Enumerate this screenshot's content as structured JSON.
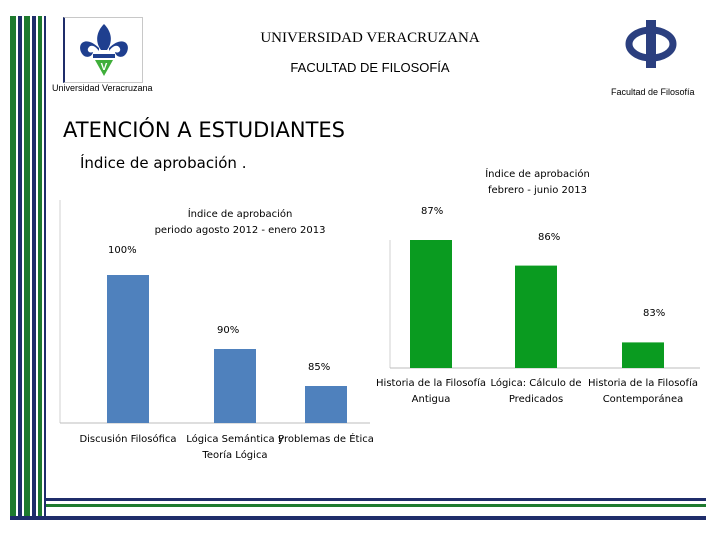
{
  "header": {
    "university": "UNIVERSIDAD VERACRUZANA",
    "faculty": "FACULTAD DE FILOSOFÍA",
    "left_logo_caption": "Universidad Veracruzana",
    "right_logo_caption": "Facultad de Filosofía"
  },
  "main": {
    "section_title": "ATENCIÓN A ESTUDIANTES",
    "subtitle": "Índice de aprobación ."
  },
  "colors": {
    "stripe_green": "#1e7a2e",
    "stripe_navy": "#1f2d6a",
    "chart1_bar": "#4f81bd",
    "chart2_bar": "#0a9b20"
  },
  "icons": {
    "left_logo": "uv-fleur-de-lis-logo",
    "right_logo": "phi-symbol-logo"
  },
  "chart_data": [
    {
      "type": "bar",
      "title_lines": [
        "Índice de aprobación",
        "periodo agosto 2012 - enero 2013"
      ],
      "categories": [
        "Discusión Filosófica",
        "Lógica Semántica y Teoría Lógica",
        "Problemas de Ética"
      ],
      "values": [
        100,
        90,
        85
      ],
      "labels": [
        "100%",
        "90%",
        "85%"
      ],
      "ylim": [
        80,
        100
      ],
      "color": "#4f81bd"
    },
    {
      "type": "bar",
      "title_lines": [
        "Índice de aprobación",
        "febrero - junio 2013"
      ],
      "categories": [
        "Historia de la Filosofía Antigua",
        "Lógica: Cálculo de Predicados",
        "Historia de la Filosofía Contemporánea"
      ],
      "values": [
        87,
        86,
        83
      ],
      "labels": [
        "87%",
        "86%",
        "83%"
      ],
      "ylim": [
        82,
        87.6
      ],
      "color": "#0a9b20"
    }
  ]
}
